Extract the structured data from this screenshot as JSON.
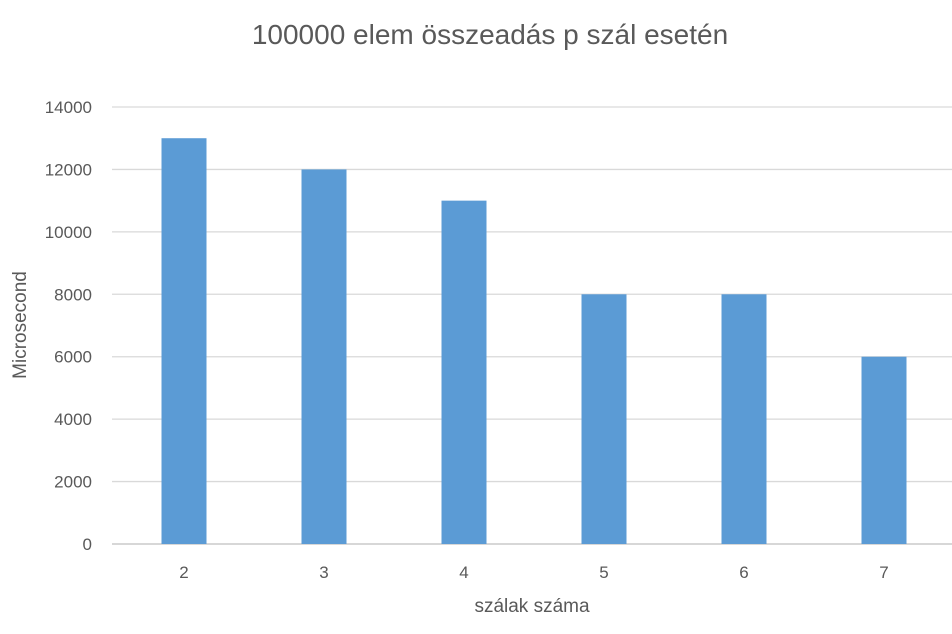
{
  "chart_data": {
    "type": "bar",
    "title": "100000 elem összeadás p szál esetén",
    "xlabel": "szálak száma",
    "ylabel": "Microsecond",
    "categories": [
      "2",
      "3",
      "4",
      "5",
      "6",
      "7"
    ],
    "series": [
      {
        "values": [
          13000,
          12000,
          11000,
          8000,
          8000,
          6000
        ]
      }
    ],
    "ylim": [
      0,
      14000
    ],
    "yticks": [
      "0",
      "2000",
      "4000",
      "6000",
      "8000",
      "10000",
      "12000",
      "14000"
    ],
    "grid": true,
    "legend": "none",
    "bar_color": "#5b9bd5"
  }
}
